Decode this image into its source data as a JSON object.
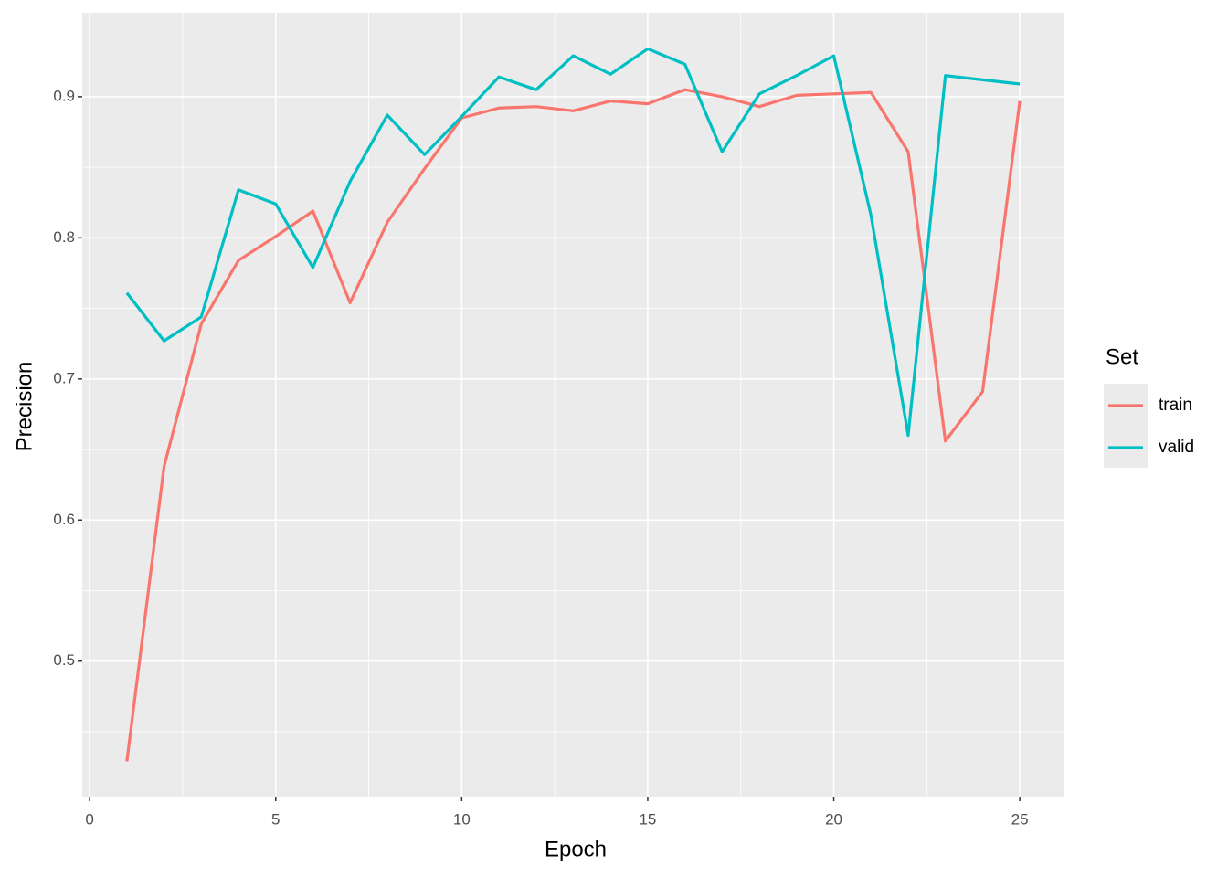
{
  "chart_data": {
    "type": "line",
    "x_label": "Epoch",
    "y_label": "Precision",
    "x": [
      1,
      2,
      3,
      4,
      5,
      6,
      7,
      8,
      9,
      10,
      11,
      12,
      13,
      14,
      15,
      16,
      17,
      18,
      19,
      20,
      21,
      22,
      23,
      24,
      25
    ],
    "series": [
      {
        "name": "train",
        "color": "#F8766D",
        "values": [
          0.429,
          0.638,
          0.739,
          0.784,
          0.801,
          0.819,
          0.754,
          0.811,
          0.849,
          0.885,
          0.892,
          0.893,
          0.89,
          0.897,
          0.895,
          0.905,
          0.9,
          0.893,
          0.901,
          0.902,
          0.903,
          0.861,
          0.656,
          0.691,
          0.897
        ]
      },
      {
        "name": "valid",
        "color": "#00BFC4",
        "values": [
          0.761,
          0.727,
          0.744,
          0.834,
          0.824,
          0.779,
          0.84,
          0.887,
          0.859,
          0.886,
          0.914,
          0.905,
          0.929,
          0.916,
          0.934,
          0.923,
          0.861,
          0.902,
          0.915,
          0.929,
          0.816,
          0.66,
          0.915,
          0.912,
          0.909
        ]
      }
    ],
    "xlim": [
      -0.2,
      26.2
    ],
    "ylim": [
      0.404,
      0.9595
    ],
    "xticks": [
      0,
      5,
      10,
      15,
      20,
      25
    ],
    "yticks": [
      0.5,
      0.6,
      0.7,
      0.8,
      0.9
    ],
    "grid": true,
    "legend_title": "Set",
    "legend_position": "right"
  }
}
